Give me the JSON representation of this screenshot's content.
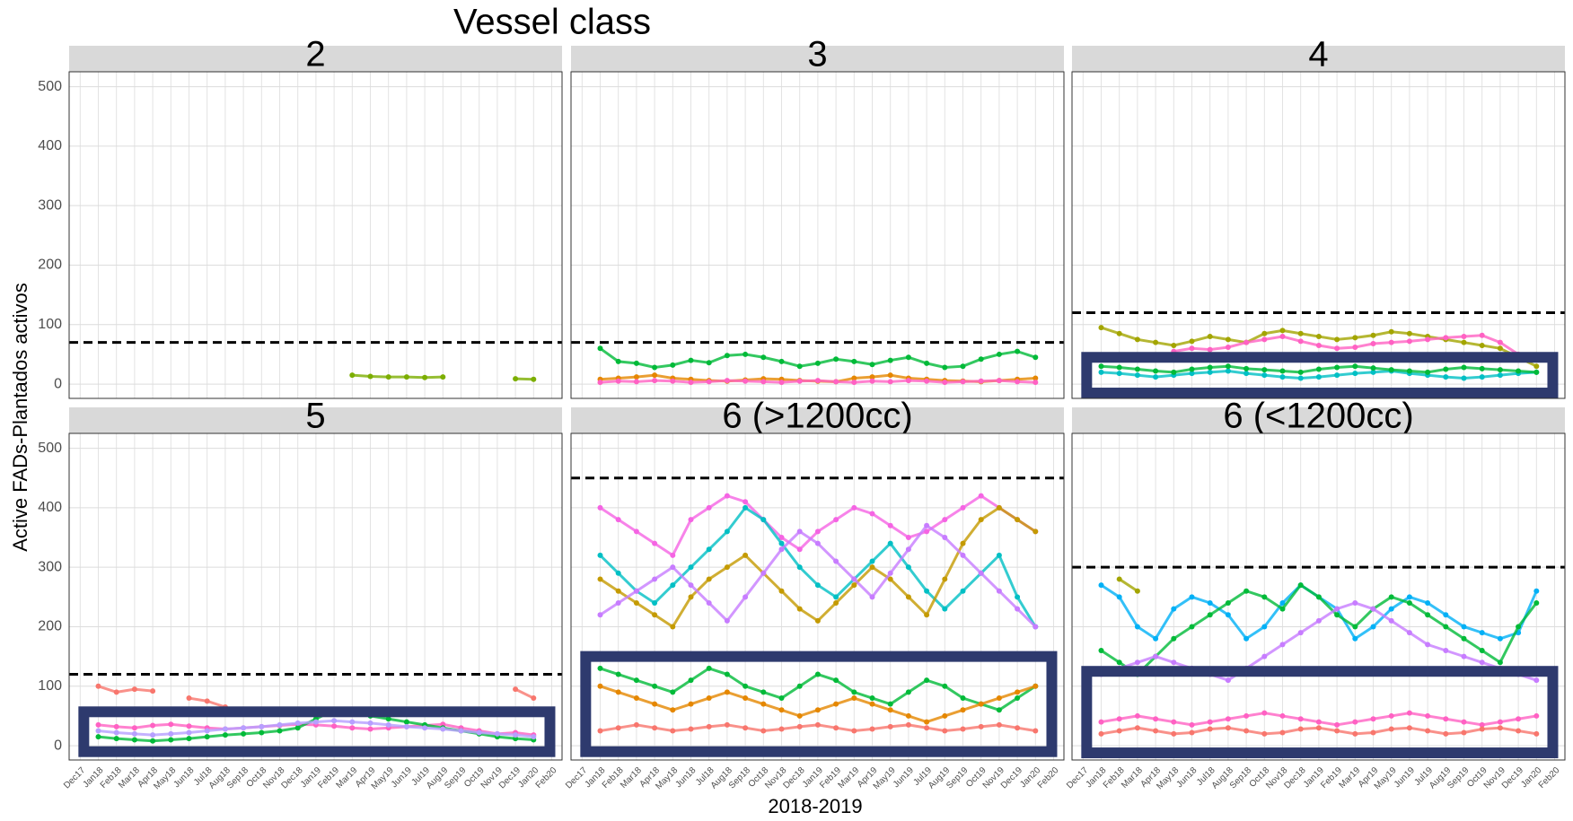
{
  "chart_data": {
    "title": "Vessel class",
    "y_axis_label": "Active FADs-Plantados activos",
    "x_axis_label": "2018-2019",
    "categories": [
      "Dec17",
      "Jan18",
      "Feb18",
      "Mar18",
      "Apr18",
      "May18",
      "Jun18",
      "Jul18",
      "Aug18",
      "Sep18",
      "Oct18",
      "Nov18",
      "Dec18",
      "Jan19",
      "Feb19",
      "Mar19",
      "Apr19",
      "May19",
      "Jun19",
      "Jul19",
      "Aug19",
      "Sep19",
      "Oct19",
      "Nov19",
      "Dec19",
      "Jan20",
      "Feb20"
    ],
    "ylim": [
      -24,
      525
    ],
    "yticks": [
      0,
      100,
      200,
      300,
      400,
      500
    ],
    "grid": true,
    "panels": [
      {
        "type": "scatter",
        "label": "2",
        "reference_line": 70,
        "highlight": null,
        "series": [
          {
            "color": "#7cae00",
            "values": [
              null,
              null,
              null,
              null,
              null,
              null,
              null,
              null,
              null,
              null,
              null,
              null,
              null,
              null,
              null,
              15,
              13,
              12,
              12,
              11,
              12,
              null,
              null,
              null,
              9,
              8,
              null
            ]
          }
        ]
      },
      {
        "type": "scatter",
        "label": "3",
        "reference_line": 70,
        "highlight": null,
        "series": [
          {
            "color": "#00ba38",
            "values": [
              null,
              60,
              38,
              35,
              28,
              32,
              40,
              36,
              48,
              50,
              45,
              38,
              30,
              35,
              42,
              38,
              33,
              40,
              45,
              35,
              28,
              30,
              42,
              50,
              55,
              45,
              null
            ]
          },
          {
            "color": "#e58700",
            "values": [
              null,
              8,
              10,
              12,
              15,
              10,
              8,
              6,
              5,
              7,
              9,
              8,
              6,
              5,
              4,
              10,
              12,
              15,
              10,
              8,
              6,
              5,
              4,
              6,
              8,
              10,
              null
            ]
          },
          {
            "color": "#ff61c3",
            "values": [
              null,
              3,
              5,
              4,
              6,
              5,
              3,
              4,
              6,
              5,
              4,
              3,
              5,
              6,
              4,
              3,
              5,
              4,
              6,
              5,
              3,
              4,
              5,
              6,
              4,
              3,
              null
            ]
          }
        ]
      },
      {
        "type": "scatter",
        "label": "4",
        "reference_line": 120,
        "highlight": [
          -15,
          45
        ],
        "series": [
          {
            "color": "#a3a500",
            "values": [
              null,
              95,
              85,
              75,
              70,
              65,
              72,
              80,
              75,
              70,
              85,
              90,
              85,
              80,
              75,
              78,
              82,
              88,
              85,
              80,
              75,
              70,
              65,
              60,
              45,
              30,
              null
            ]
          },
          {
            "color": "#ff61c3",
            "values": [
              null,
              null,
              null,
              null,
              null,
              55,
              60,
              58,
              62,
              70,
              75,
              80,
              72,
              65,
              60,
              62,
              68,
              70,
              72,
              75,
              78,
              80,
              82,
              70,
              50,
              null,
              null
            ]
          },
          {
            "color": "#00bfc4",
            "values": [
              null,
              20,
              18,
              15,
              12,
              15,
              18,
              20,
              22,
              18,
              15,
              12,
              10,
              12,
              15,
              18,
              20,
              22,
              18,
              15,
              12,
              10,
              12,
              15,
              18,
              20,
              null
            ]
          },
          {
            "color": "#00ba38",
            "values": [
              null,
              30,
              28,
              25,
              22,
              20,
              25,
              28,
              30,
              26,
              24,
              22,
              20,
              25,
              28,
              30,
              27,
              24,
              22,
              20,
              25,
              28,
              26,
              24,
              22,
              20,
              null
            ]
          }
        ]
      },
      {
        "type": "scatter",
        "label": "5",
        "reference_line": 120,
        "highlight": [
          -10,
          57
        ],
        "series": [
          {
            "color": "#f8766d",
            "values": [
              null,
              100,
              90,
              95,
              92,
              null,
              80,
              75,
              65,
              null,
              null,
              null,
              null,
              null,
              null,
              null,
              null,
              null,
              null,
              null,
              null,
              null,
              null,
              null,
              95,
              80,
              null
            ]
          },
          {
            "color": "#ff61c3",
            "values": [
              null,
              35,
              32,
              30,
              34,
              36,
              33,
              30,
              28,
              30,
              32,
              34,
              36,
              35,
              33,
              30,
              28,
              30,
              32,
              34,
              36,
              30,
              25,
              20,
              22,
              18,
              null
            ]
          },
          {
            "color": "#00ba38",
            "values": [
              null,
              15,
              12,
              10,
              8,
              10,
              12,
              15,
              18,
              20,
              22,
              25,
              30,
              45,
              60,
              55,
              50,
              45,
              40,
              35,
              30,
              25,
              20,
              15,
              12,
              10,
              null
            ]
          },
          {
            "color": "#b79fff",
            "values": [
              null,
              25,
              22,
              20,
              18,
              20,
              22,
              25,
              28,
              30,
              32,
              35,
              38,
              40,
              42,
              40,
              38,
              35,
              32,
              30,
              28,
              25,
              22,
              20,
              18,
              15,
              null
            ]
          }
        ]
      },
      {
        "type": "scatter",
        "label": "6 (>1200cc)",
        "reference_line": 450,
        "highlight": [
          -10,
          150
        ],
        "series": [
          {
            "color": "#f564e3",
            "values": [
              null,
              400,
              380,
              360,
              340,
              320,
              380,
              400,
              420,
              410,
              380,
              350,
              330,
              360,
              380,
              400,
              390,
              370,
              350,
              360,
              380,
              400,
              420,
              400,
              380,
              360,
              null
            ]
          },
          {
            "color": "#00bfc4",
            "values": [
              null,
              320,
              290,
              260,
              240,
              270,
              300,
              330,
              360,
              400,
              380,
              340,
              300,
              270,
              250,
              280,
              310,
              340,
              300,
              260,
              230,
              260,
              290,
              320,
              250,
              200,
              null
            ]
          },
          {
            "color": "#c49a00",
            "values": [
              null,
              280,
              260,
              240,
              220,
              200,
              250,
              280,
              300,
              320,
              290,
              260,
              230,
              210,
              240,
              270,
              300,
              280,
              250,
              220,
              280,
              340,
              380,
              400,
              380,
              360,
              null
            ]
          },
          {
            "color": "#c77cff",
            "values": [
              null,
              220,
              240,
              260,
              280,
              300,
              270,
              240,
              210,
              250,
              290,
              330,
              360,
              340,
              310,
              280,
              250,
              290,
              330,
              370,
              350,
              320,
              290,
              260,
              230,
              200,
              null
            ]
          },
          {
            "color": "#00ba38",
            "values": [
              null,
              130,
              120,
              110,
              100,
              90,
              110,
              130,
              120,
              100,
              90,
              80,
              100,
              120,
              110,
              90,
              80,
              70,
              90,
              110,
              100,
              80,
              70,
              60,
              80,
              100,
              null
            ]
          },
          {
            "color": "#f8766d",
            "values": [
              null,
              25,
              30,
              35,
              30,
              25,
              28,
              32,
              35,
              30,
              25,
              28,
              32,
              35,
              30,
              25,
              28,
              32,
              35,
              30,
              25,
              28,
              32,
              35,
              30,
              25,
              null
            ]
          },
          {
            "color": "#e58700",
            "values": [
              null,
              100,
              90,
              80,
              70,
              60,
              70,
              80,
              90,
              80,
              70,
              60,
              50,
              60,
              70,
              80,
              70,
              60,
              50,
              40,
              50,
              60,
              70,
              80,
              90,
              100,
              null
            ]
          }
        ]
      },
      {
        "type": "scatter",
        "label": "6 (<1200cc)",
        "reference_line": 300,
        "highlight": [
          -12,
          125
        ],
        "series": [
          {
            "color": "#00b0f6",
            "values": [
              null,
              270,
              250,
              200,
              180,
              230,
              250,
              240,
              220,
              180,
              200,
              240,
              270,
              250,
              230,
              180,
              200,
              230,
              250,
              240,
              220,
              200,
              190,
              180,
              190,
              260,
              null
            ]
          },
          {
            "color": "#a3a500",
            "values": [
              null,
              null,
              280,
              260,
              null,
              null,
              null,
              null,
              null,
              null,
              null,
              null,
              null,
              null,
              null,
              null,
              null,
              null,
              null,
              null,
              null,
              null,
              null,
              null,
              null,
              null,
              null
            ]
          },
          {
            "color": "#00ba38",
            "values": [
              null,
              160,
              140,
              120,
              150,
              180,
              200,
              220,
              240,
              260,
              250,
              230,
              270,
              250,
              220,
              200,
              230,
              250,
              240,
              220,
              200,
              180,
              160,
              140,
              200,
              240,
              null
            ]
          },
          {
            "color": "#c77cff",
            "values": [
              null,
              120,
              130,
              140,
              150,
              140,
              130,
              120,
              110,
              130,
              150,
              170,
              190,
              210,
              230,
              240,
              230,
              210,
              190,
              170,
              160,
              150,
              140,
              130,
              120,
              110,
              null
            ]
          },
          {
            "color": "#ff61c3",
            "values": [
              null,
              40,
              45,
              50,
              45,
              40,
              35,
              40,
              45,
              50,
              55,
              50,
              45,
              40,
              35,
              40,
              45,
              50,
              55,
              50,
              45,
              40,
              35,
              40,
              45,
              50,
              null
            ]
          },
          {
            "color": "#f8766d",
            "values": [
              null,
              20,
              25,
              30,
              25,
              20,
              22,
              28,
              30,
              25,
              20,
              22,
              28,
              30,
              25,
              20,
              22,
              28,
              30,
              25,
              20,
              22,
              28,
              30,
              25,
              20,
              null
            ]
          }
        ]
      }
    ]
  }
}
